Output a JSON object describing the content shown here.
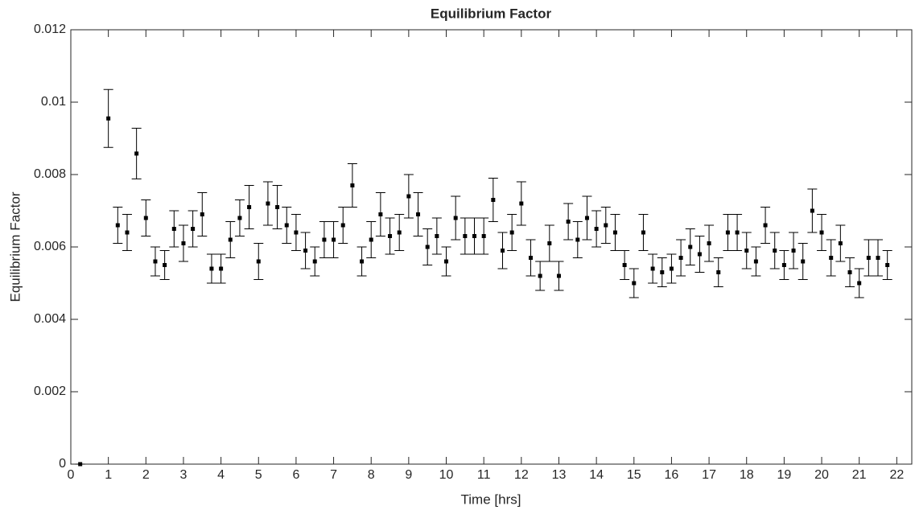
{
  "chart_data": {
    "type": "errorbar",
    "title": "Equilibrium Factor",
    "x_label": "Time [hrs]",
    "y_label": "Equilibrium Factor",
    "x": [
      0.25,
      1,
      1.25,
      1.5,
      1.75,
      2,
      2.25,
      2.5,
      2.75,
      3,
      3.25,
      3.5,
      3.75,
      4,
      4.25,
      4.5,
      4.75,
      5,
      5.25,
      5.5,
      5.75,
      6,
      6.25,
      6.5,
      6.75,
      7,
      7.25,
      7.5,
      7.75,
      8,
      8.25,
      8.5,
      8.75,
      9,
      9.25,
      9.5,
      9.75,
      10,
      10.25,
      10.5,
      10.75,
      11,
      11.25,
      11.5,
      11.75,
      12,
      12.25,
      12.5,
      12.75,
      13,
      13.25,
      13.5,
      13.75,
      14,
      14.25,
      14.5,
      14.75,
      15,
      15.25,
      15.5,
      15.75,
      16,
      16.25,
      16.5,
      16.75,
      17,
      17.25,
      17.5,
      17.75,
      18,
      18.25,
      18.5,
      18.75,
      19,
      19.25,
      19.5,
      19.75,
      20,
      20.25,
      20.5,
      20.75,
      21,
      21.25,
      21.5,
      21.75
    ],
    "values": [
      0,
      0.00955,
      0.0066,
      0.0064,
      0.00858,
      0.0068,
      0.0056,
      0.0055,
      0.0065,
      0.0061,
      0.0065,
      0.0069,
      0.0054,
      0.0054,
      0.0062,
      0.0068,
      0.0071,
      0.0056,
      0.0072,
      0.0071,
      0.0066,
      0.0064,
      0.0059,
      0.0056,
      0.0062,
      0.0062,
      0.0066,
      0.0077,
      0.0056,
      0.0062,
      0.0069,
      0.0063,
      0.0064,
      0.0074,
      0.0069,
      0.006,
      0.0063,
      0.0056,
      0.0068,
      0.0063,
      0.0063,
      0.0063,
      0.0073,
      0.0059,
      0.0064,
      0.0072,
      0.0057,
      0.0052,
      0.0061,
      0.0052,
      0.0067,
      0.0062,
      0.0068,
      0.0065,
      0.0066,
      0.0064,
      0.0055,
      0.005,
      0.0064,
      0.0054,
      0.0053,
      0.0054,
      0.0057,
      0.006,
      0.0058,
      0.0061,
      0.0053,
      0.0064,
      0.0064,
      0.0059,
      0.0056,
      0.0066,
      0.0059,
      0.0055,
      0.0059,
      0.0056,
      0.007,
      0.0064,
      0.0057,
      0.0061,
      0.0053,
      0.005,
      0.0057,
      0.0057,
      0.0055
    ],
    "errors": [
      0,
      0.0008,
      0.0005,
      0.0005,
      0.0007,
      0.0005,
      0.0004,
      0.0004,
      0.0005,
      0.0005,
      0.0005,
      0.0006,
      0.0004,
      0.0004,
      0.0005,
      0.0005,
      0.0006,
      0.0005,
      0.0006,
      0.0006,
      0.0005,
      0.0005,
      0.0005,
      0.0004,
      0.0005,
      0.0005,
      0.0005,
      0.0006,
      0.0004,
      0.0005,
      0.0006,
      0.0005,
      0.0005,
      0.0006,
      0.0006,
      0.0005,
      0.0005,
      0.0004,
      0.0006,
      0.0005,
      0.0005,
      0.0005,
      0.0006,
      0.0005,
      0.0005,
      0.0006,
      0.0005,
      0.0004,
      0.0005,
      0.0004,
      0.0005,
      0.0005,
      0.0006,
      0.0005,
      0.0005,
      0.0005,
      0.0004,
      0.0004,
      0.0005,
      0.0004,
      0.0004,
      0.0004,
      0.0005,
      0.0005,
      0.0005,
      0.0005,
      0.0004,
      0.0005,
      0.0005,
      0.0005,
      0.0004,
      0.0005,
      0.0005,
      0.0004,
      0.0005,
      0.0005,
      0.0006,
      0.0005,
      0.0005,
      0.0005,
      0.0004,
      0.0004,
      0.0005,
      0.0005,
      0.0004
    ],
    "color": "#000000",
    "xlim": [
      0,
      22.4
    ],
    "xticks": [
      0,
      1,
      2,
      3,
      4,
      5,
      6,
      7,
      8,
      9,
      10,
      11,
      12,
      13,
      14,
      15,
      16,
      17,
      18,
      19,
      20,
      21,
      22
    ],
    "ylim": [
      0,
      0.012
    ],
    "yticks": [
      0,
      0.002,
      0.004,
      0.006,
      0.008,
      0.01,
      0.012
    ]
  }
}
